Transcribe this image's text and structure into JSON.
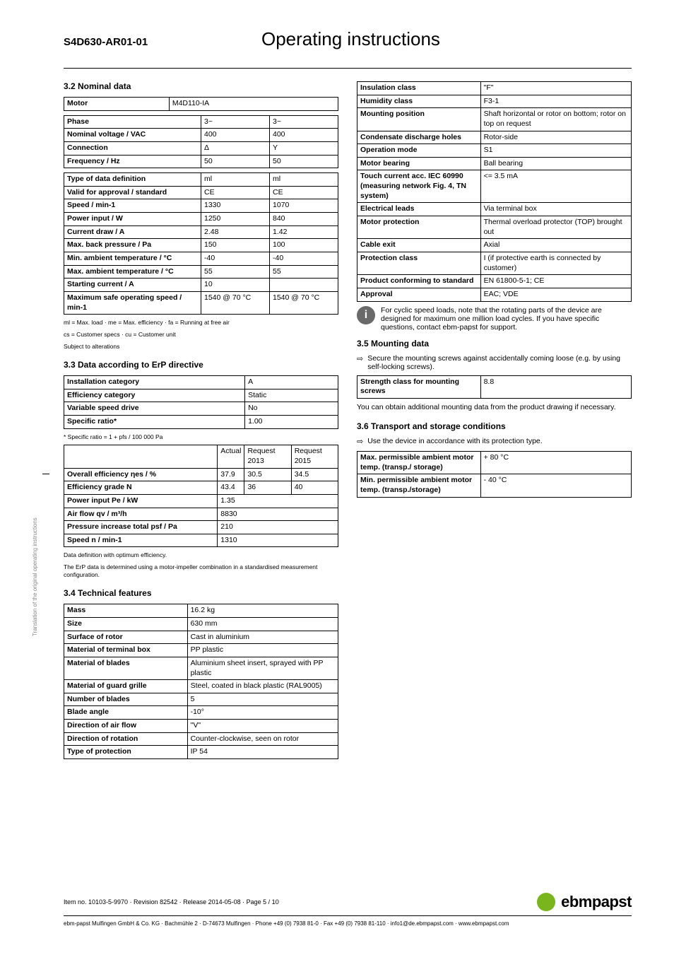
{
  "header": {
    "model": "S4D630-AR01-01",
    "title": "Operating instructions"
  },
  "s32": {
    "heading": "3.2 Nominal data",
    "motor_label": "Motor",
    "motor_value": "M4D110-IA",
    "rows1": [
      [
        "Phase",
        "3~",
        "3~"
      ],
      [
        "Nominal voltage / VAC",
        "400",
        "400"
      ],
      [
        "Connection",
        "Δ",
        "Y"
      ],
      [
        "Frequency / Hz",
        "50",
        "50"
      ]
    ],
    "rows2": [
      [
        "Type of data definition",
        "ml",
        "ml"
      ],
      [
        "Valid for approval / standard",
        "CE",
        "CE"
      ],
      [
        "Speed / min-1",
        "1330",
        "1070"
      ],
      [
        "Power input / W",
        "1250",
        "840"
      ],
      [
        "Current draw / A",
        "2.48",
        "1.42"
      ],
      [
        "Max. back pressure / Pa",
        "150",
        "100"
      ],
      [
        "Min. ambient temperature / °C",
        "-40",
        "-40"
      ],
      [
        "Max. ambient temperature / °C",
        "55",
        "55"
      ],
      [
        "Starting current / A",
        "10",
        ""
      ],
      [
        "Maximum safe operating speed / min-1",
        "1540 @ 70 °C",
        "1540 @ 70 °C"
      ]
    ],
    "foot1": "ml = Max. load · me = Max. efficiency · fa = Running at free air",
    "foot2": "cs = Customer specs · cu = Customer unit",
    "foot3": "Subject to alterations"
  },
  "s33": {
    "heading": "3.3 Data according to ErP directive",
    "rows1": [
      [
        "Installation category",
        "A"
      ],
      [
        "Efficiency category",
        "Static"
      ],
      [
        "Variable speed drive",
        "No"
      ],
      [
        "Specific ratio*",
        "1.00"
      ]
    ],
    "foot_star": "* Specific ratio = 1 + pfs / 100 000 Pa",
    "head2": [
      "",
      "Actual",
      "Request 2013",
      "Request 2015"
    ],
    "rows2": [
      [
        "Overall efficiency ηes / %",
        "37.9",
        "30.5",
        "34.5"
      ],
      [
        "Efficiency grade N",
        "43.4",
        "36",
        "40"
      ],
      [
        "Power input Pe / kW",
        "1.35",
        "",
        ""
      ],
      [
        "Air flow qv / m³/h",
        "8830",
        "",
        ""
      ],
      [
        "Pressure increase total psf / Pa",
        "210",
        "",
        ""
      ],
      [
        "Speed n / min-1",
        "1310",
        "",
        ""
      ]
    ],
    "foot1": "Data definition with optimum efficiency.",
    "foot2": "The ErP data is determined using a motor-impeller combination in a standardised measurement configuration."
  },
  "s34": {
    "heading": "3.4 Technical features",
    "rows": [
      [
        "Mass",
        "16.2 kg"
      ],
      [
        "Size",
        "630 mm"
      ],
      [
        "Surface of rotor",
        "Cast in aluminium"
      ],
      [
        "Material of terminal box",
        "PP plastic"
      ],
      [
        "Material of blades",
        "Aluminium sheet insert, sprayed with PP plastic"
      ],
      [
        "Material of guard grille",
        "Steel, coated in black plastic (RAL9005)"
      ],
      [
        "Number of blades",
        "5"
      ],
      [
        "Blade angle",
        "-10°"
      ],
      [
        "Direction of air flow",
        "\"V\""
      ],
      [
        "Direction of rotation",
        "Counter-clockwise, seen on rotor"
      ],
      [
        "Type of protection",
        "IP 54"
      ]
    ]
  },
  "s34b": {
    "rows": [
      [
        "Insulation class",
        "\"F\""
      ],
      [
        "Humidity class",
        "F3-1"
      ],
      [
        "Mounting position",
        "Shaft horizontal or rotor on bottom; rotor on top on request"
      ],
      [
        "Condensate discharge holes",
        "Rotor-side"
      ],
      [
        "Operation mode",
        "S1"
      ],
      [
        "Motor bearing",
        "Ball bearing"
      ],
      [
        "Touch current acc. IEC 60990 (measuring network Fig. 4, TN system)",
        "<= 3.5 mA"
      ],
      [
        "Electrical leads",
        "Via terminal box"
      ],
      [
        "Motor protection",
        "Thermal overload protector (TOP) brought out"
      ],
      [
        "Cable exit",
        "Axial"
      ],
      [
        "Protection class",
        "I (if protective earth is connected by customer)"
      ],
      [
        "Product conforming to standard",
        "EN 61800-5-1; CE"
      ],
      [
        "Approval",
        "EAC; VDE"
      ]
    ],
    "note": "For cyclic speed loads, note that the rotating parts of the device are designed for maximum one million load cycles. If you have specific questions, contact ebm-papst for support."
  },
  "s35": {
    "heading": "3.5 Mounting data",
    "bullet": "Secure the mounting screws against accidentally coming loose (e.g. by using self-locking screws).",
    "rows": [
      [
        "Strength class for mounting screws",
        "8.8"
      ]
    ],
    "foot": "You can obtain additional mounting data from the product drawing if necessary."
  },
  "s36": {
    "heading": "3.6 Transport and storage conditions",
    "bullet": "Use the device in accordance with its protection type.",
    "rows": [
      [
        "Max. permissible ambient motor temp. (transp./ storage)",
        "+ 80 °C"
      ],
      [
        "Min. permissible ambient motor temp. (transp./storage)",
        "- 40 °C"
      ]
    ]
  },
  "footer": {
    "line1": "Item no. 10103-5-9970 · Revision 82542 · Release 2014-05-08 · Page 5 / 10",
    "brand": "ebmpapst",
    "line2": "ebm-papst Mulfingen GmbH & Co. KG · Bachmühle 2 · D-74673 Mulfingen · Phone +49 (0) 7938 81-0 · Fax +49 (0) 7938 81-110 · info1@de.ebmpapst.com · www.ebmpapst.com"
  },
  "side": "Translation of the original operating instructions"
}
